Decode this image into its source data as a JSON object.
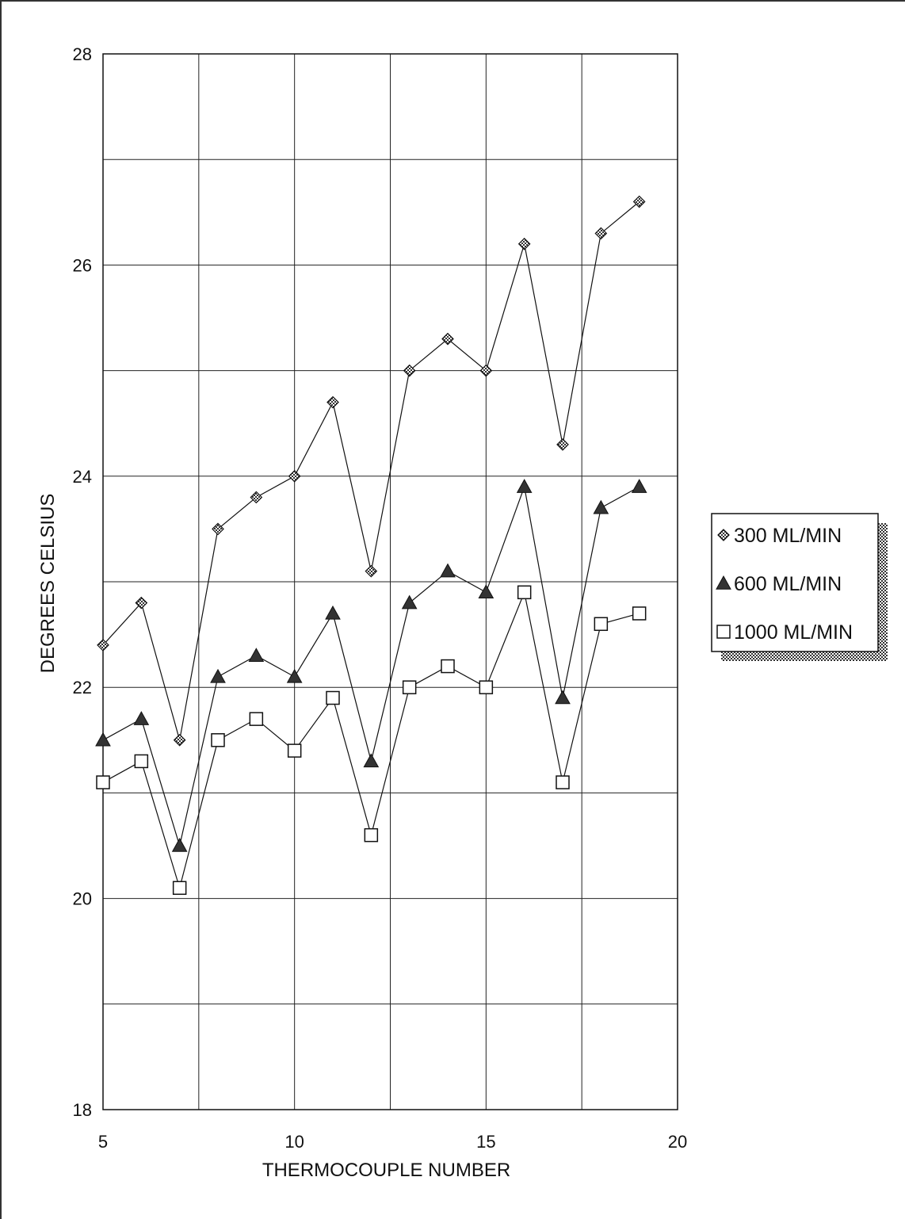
{
  "chart_data": {
    "type": "line",
    "xlabel": "THERMOCOUPLE NUMBER",
    "ylabel": "DEGREES CELSIUS",
    "xlim": [
      5,
      20
    ],
    "ylim": [
      18,
      28
    ],
    "x_ticks": [
      "5",
      "10",
      "15",
      "20"
    ],
    "y_ticks": [
      "18",
      "20",
      "22",
      "24",
      "26",
      "28"
    ],
    "grid": true,
    "legend_placement": "right",
    "x": [
      5,
      6,
      7,
      8,
      9,
      10,
      11,
      12,
      13,
      14,
      15,
      16,
      17,
      18,
      19
    ],
    "series": [
      {
        "name": "300 ML/MIN",
        "marker": "diamond",
        "values": [
          22.4,
          22.8,
          21.5,
          23.5,
          23.8,
          24.0,
          24.7,
          23.1,
          25.0,
          25.3,
          25.0,
          26.2,
          24.3,
          26.3,
          26.6
        ]
      },
      {
        "name": "600 ML/MIN",
        "marker": "triangle",
        "values": [
          21.5,
          21.7,
          20.5,
          22.1,
          22.3,
          22.1,
          22.7,
          21.3,
          22.8,
          23.1,
          22.9,
          23.9,
          21.9,
          23.7,
          23.9
        ]
      },
      {
        "name": "1000 ML/MIN",
        "marker": "square",
        "values": [
          21.1,
          21.3,
          20.1,
          21.5,
          21.7,
          21.4,
          21.9,
          20.6,
          22.0,
          22.2,
          22.0,
          22.9,
          21.1,
          22.6,
          22.7
        ]
      }
    ]
  }
}
